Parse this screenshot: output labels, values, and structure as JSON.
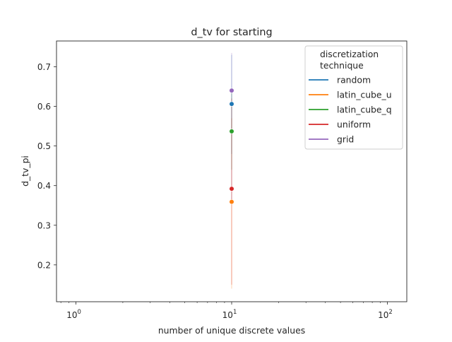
{
  "chart_data": {
    "type": "scatter",
    "title": "d_tv for starting",
    "xlabel": "number of unique discrete values",
    "ylabel": "d_tv_pi",
    "xscale": "log",
    "xlim": [
      0.75,
      133.3
    ],
    "ylim": [
      0.107,
      0.765
    ],
    "x_ticks": [
      {
        "value": 1,
        "base": "10",
        "exp": "0"
      },
      {
        "value": 10,
        "base": "10",
        "exp": "1"
      },
      {
        "value": 100,
        "base": "10",
        "exp": "2"
      }
    ],
    "y_ticks": [
      0.2,
      0.3,
      0.4,
      0.5,
      0.6,
      0.7
    ],
    "y_tick_labels": [
      "0.2",
      "0.3",
      "0.4",
      "0.5",
      "0.6",
      "0.7"
    ],
    "grid": false,
    "legend": {
      "title_line1": "discretization",
      "title_line2": "technique",
      "placement": "top-right"
    },
    "series": [
      {
        "name": "random",
        "color": "#1f77b4",
        "x": 10,
        "y": 0.606,
        "ci": [
          0.48,
          0.73
        ]
      },
      {
        "name": "latin_cube_u",
        "color": "#ff7f0e",
        "x": 10,
        "y": 0.359,
        "ci": [
          0.14,
          0.57
        ]
      },
      {
        "name": "latin_cube_q",
        "color": "#2ca02c",
        "x": 10,
        "y": 0.537,
        "ci": [
          0.44,
          0.64
        ]
      },
      {
        "name": "uniform",
        "color": "#d62728",
        "x": 10,
        "y": 0.392,
        "ci": [
          0.15,
          0.62
        ]
      },
      {
        "name": "grid",
        "color": "#9467bd",
        "x": 10,
        "y": 0.64,
        "ci": [
          0.36,
          0.735
        ]
      }
    ]
  }
}
